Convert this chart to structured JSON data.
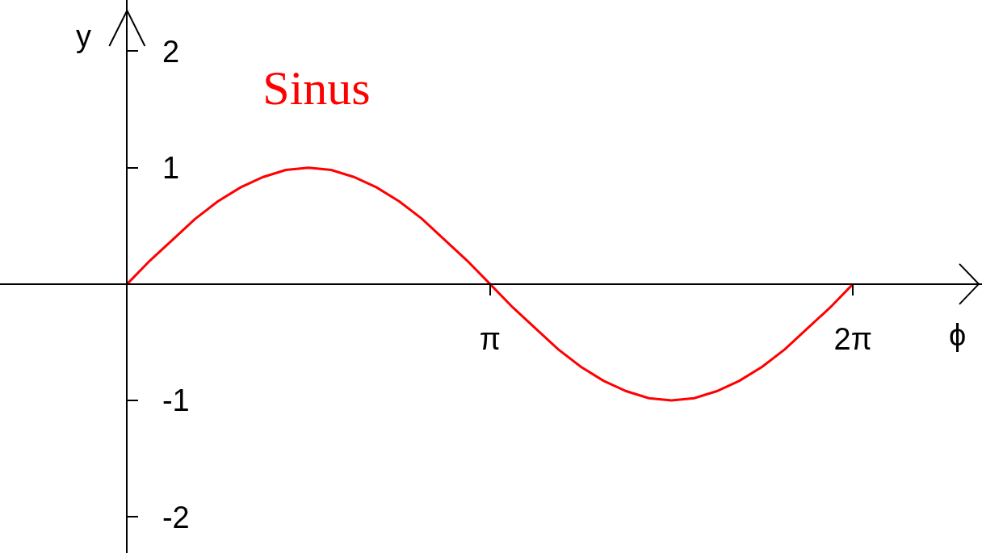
{
  "chart_data": {
    "type": "line",
    "title": "Sinus",
    "xlabel": "ϕ",
    "ylabel": "y",
    "x": [
      0,
      0.196,
      0.393,
      0.589,
      0.785,
      0.982,
      1.178,
      1.374,
      1.571,
      1.767,
      1.963,
      2.16,
      2.356,
      2.553,
      2.749,
      2.945,
      3.142,
      3.338,
      3.534,
      3.731,
      3.927,
      4.123,
      4.32,
      4.516,
      4.712,
      4.909,
      5.105,
      5.301,
      5.498,
      5.694,
      5.89,
      6.087,
      6.283
    ],
    "series": [
      {
        "color": "#ff0000",
        "values": [
          0,
          0.2,
          0.38,
          0.56,
          0.71,
          0.83,
          0.92,
          0.98,
          1.0,
          0.98,
          0.92,
          0.83,
          0.71,
          0.56,
          0.38,
          0.2,
          0,
          -0.2,
          -0.38,
          -0.56,
          -0.71,
          -0.83,
          -0.92,
          -0.98,
          -1.0,
          -0.98,
          -0.92,
          -0.83,
          -0.71,
          -0.56,
          -0.38,
          -0.2,
          0
        ]
      }
    ],
    "xlim": [
      -1.1,
      7.4
    ],
    "ylim": [
      -2.31,
      2.44
    ],
    "xticks": [
      {
        "value": 3.1416,
        "label": "π"
      },
      {
        "value": 6.2832,
        "label": "2π"
      }
    ],
    "yticks": [
      -2,
      -1,
      1,
      2
    ],
    "line_style": "solid"
  }
}
